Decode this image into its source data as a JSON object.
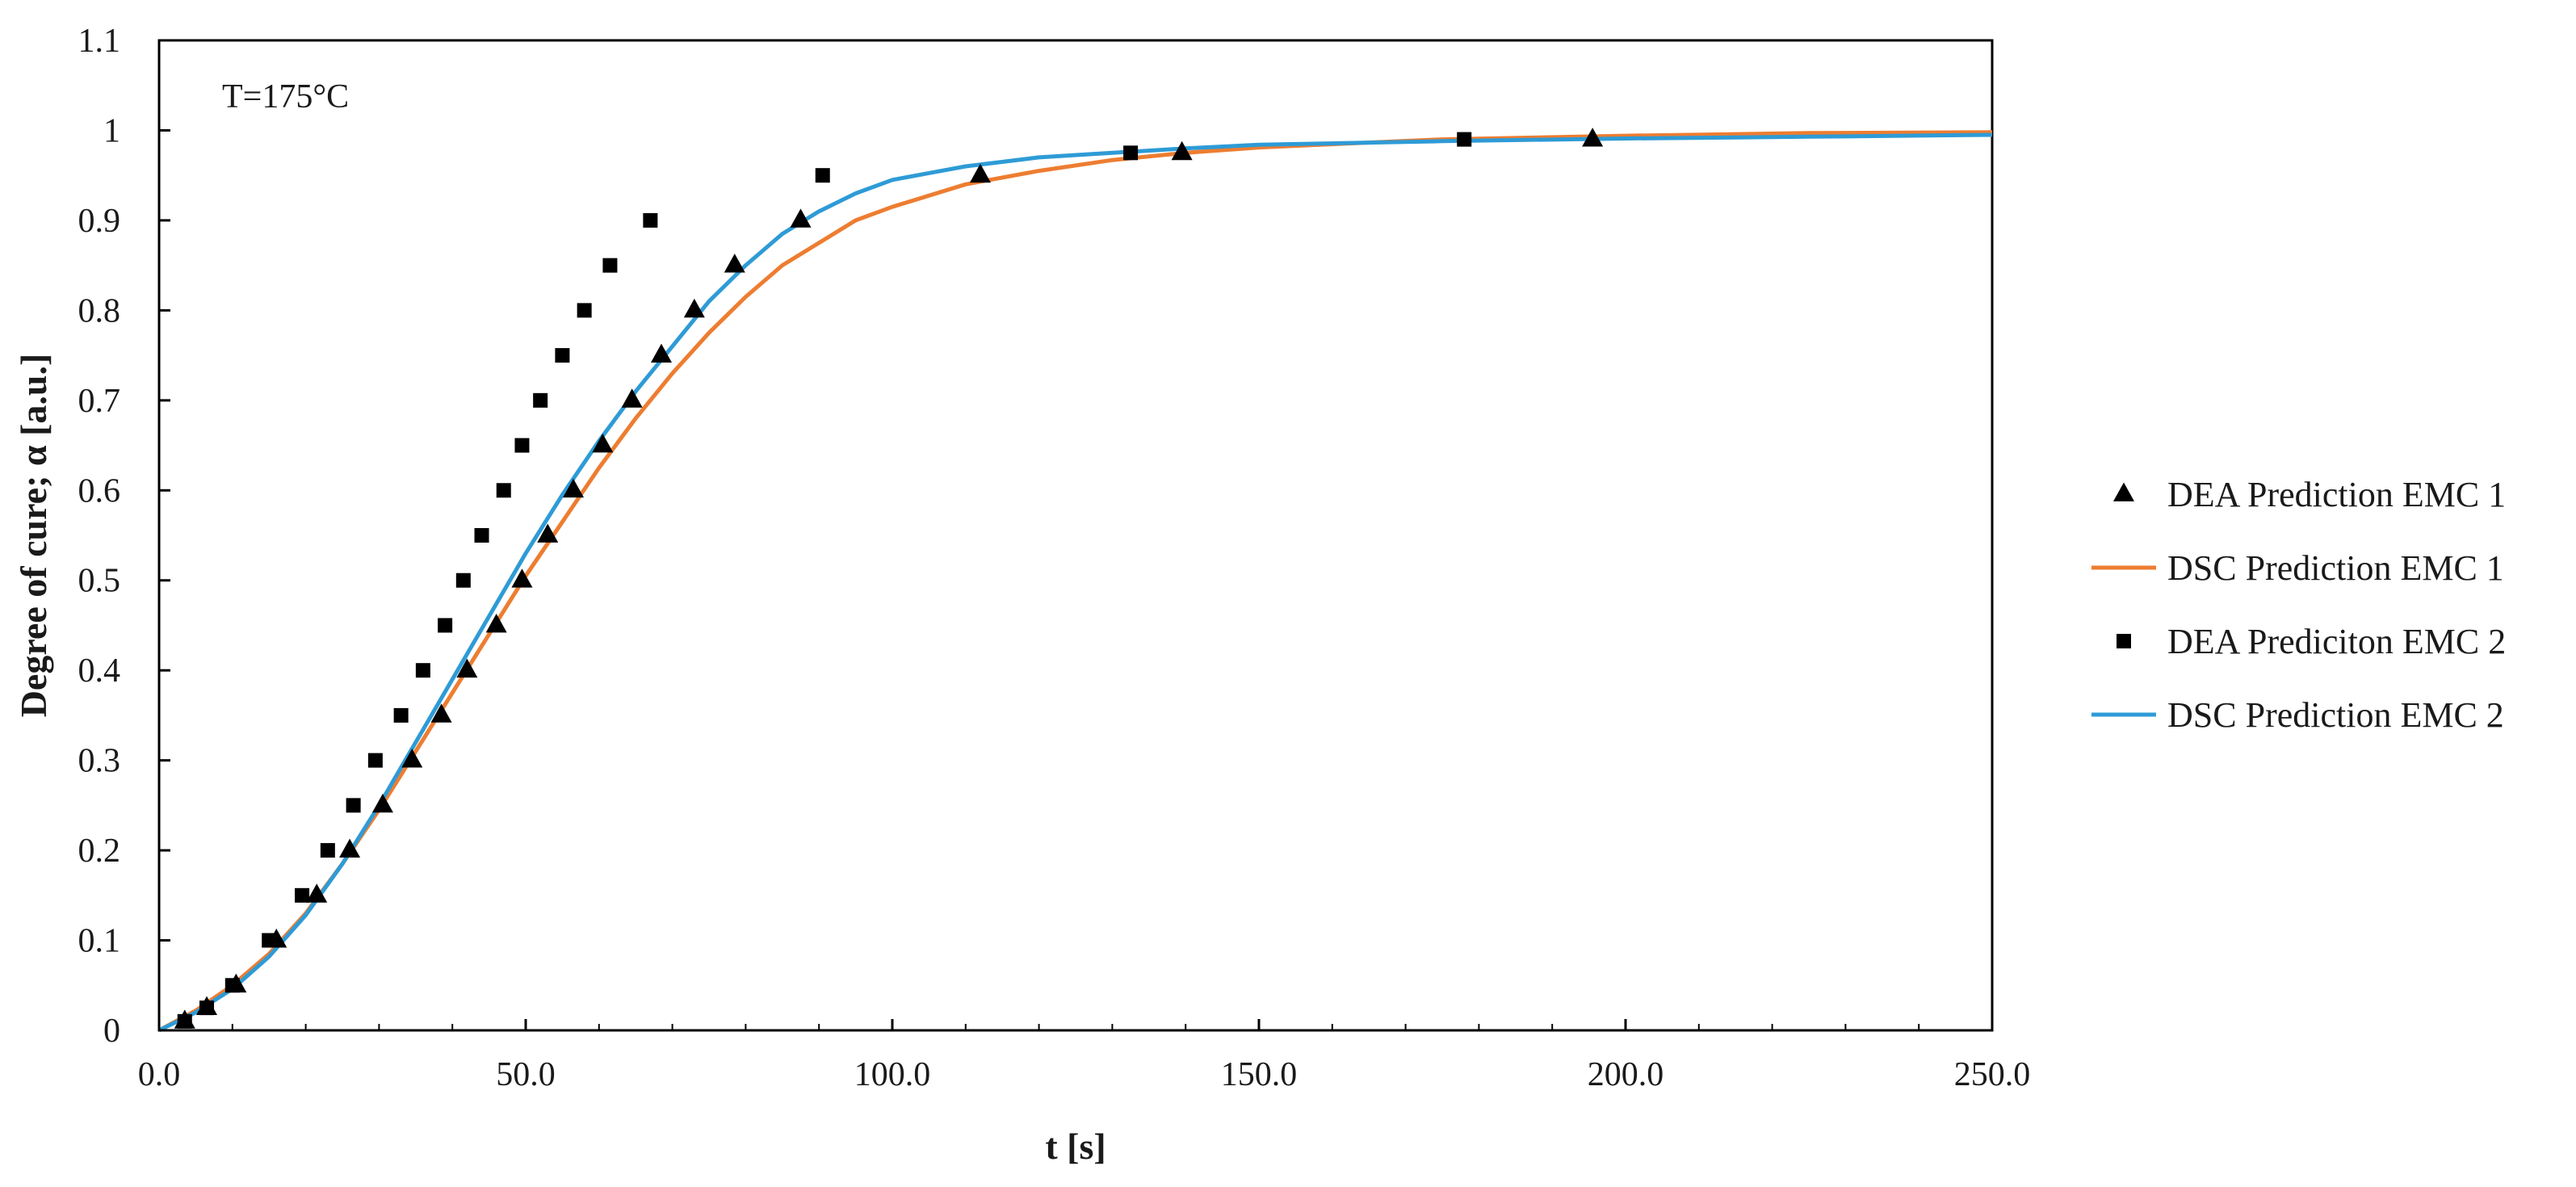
{
  "chart_data": {
    "type": "scatter",
    "title": "",
    "xlabel": "t [s]",
    "ylabel": "Degree of cure; α [a.u.]",
    "annotation": "T=175°C",
    "xlim": [
      0,
      250
    ],
    "ylim": [
      0,
      1.1
    ],
    "x_ticks": [
      0,
      50,
      100,
      150,
      200,
      250
    ],
    "x_tick_labels": [
      "0.0",
      "50.0",
      "100.0",
      "150.0",
      "200.0",
      "250.0"
    ],
    "y_ticks": [
      0,
      0.1,
      0.2,
      0.3,
      0.4,
      0.5,
      0.6,
      0.7,
      0.8,
      0.9,
      1,
      1.1
    ],
    "y_tick_labels": [
      "0",
      "0.1",
      "0.2",
      "0.3",
      "0.4",
      "0.5",
      "0.6",
      "0.7",
      "0.8",
      "0.9",
      "1",
      "1.1"
    ],
    "grid": false,
    "legend_position": "right",
    "series": [
      {
        "name": "DEA Prediction EMC 1",
        "kind": "markers",
        "marker": "triangle",
        "color": "#000000",
        "x": [
          3.5,
          6.5,
          10.5,
          16.0,
          21.5,
          26.0,
          30.5,
          34.5,
          38.5,
          42.0,
          46.0,
          49.5,
          53.0,
          56.5,
          60.5,
          64.5,
          68.5,
          73.0,
          78.5,
          87.5,
          112.0,
          139.5,
          195.5
        ],
        "y": [
          0.01,
          0.025,
          0.05,
          0.1,
          0.15,
          0.2,
          0.25,
          0.3,
          0.35,
          0.4,
          0.45,
          0.5,
          0.55,
          0.6,
          0.65,
          0.7,
          0.75,
          0.8,
          0.85,
          0.9,
          0.95,
          0.975,
          0.99
        ]
      },
      {
        "name": "DSC Prediction EMC 1",
        "kind": "line",
        "color": "#ED7D31",
        "x": [
          0,
          5,
          10,
          15,
          20,
          25,
          30,
          35,
          40,
          45,
          50,
          55,
          60,
          65,
          70,
          75,
          80,
          85,
          90,
          95,
          100,
          110,
          120,
          130,
          140,
          150,
          175,
          200,
          225,
          250
        ],
        "y": [
          0,
          0.022,
          0.05,
          0.085,
          0.13,
          0.185,
          0.245,
          0.31,
          0.375,
          0.44,
          0.505,
          0.565,
          0.625,
          0.68,
          0.73,
          0.775,
          0.815,
          0.85,
          0.875,
          0.9,
          0.915,
          0.94,
          0.955,
          0.967,
          0.975,
          0.981,
          0.99,
          0.994,
          0.997,
          0.998
        ]
      },
      {
        "name": "DEA Prediciton EMC 2",
        "kind": "markers",
        "marker": "square",
        "color": "#000000",
        "x": [
          3.5,
          6.5,
          10.0,
          15.0,
          19.5,
          23.0,
          26.5,
          29.5,
          33.0,
          36.0,
          39.0,
          41.5,
          44.0,
          47.0,
          49.5,
          52.0,
          55.0,
          58.0,
          61.5,
          67.0,
          90.5,
          132.5,
          178.0
        ],
        "y": [
          0.01,
          0.025,
          0.05,
          0.1,
          0.15,
          0.2,
          0.25,
          0.3,
          0.35,
          0.4,
          0.45,
          0.5,
          0.55,
          0.6,
          0.65,
          0.7,
          0.75,
          0.8,
          0.85,
          0.9,
          0.95,
          0.975,
          0.99
        ]
      },
      {
        "name": "DSC Prediction EMC 2",
        "kind": "line",
        "color": "#2E9BD6",
        "x": [
          0,
          5,
          10,
          15,
          20,
          25,
          30,
          35,
          40,
          45,
          50,
          55,
          60,
          65,
          70,
          75,
          80,
          85,
          90,
          95,
          100,
          110,
          120,
          130,
          140,
          150,
          175,
          200,
          225,
          250
        ],
        "y": [
          0,
          0.02,
          0.046,
          0.082,
          0.128,
          0.185,
          0.25,
          0.32,
          0.39,
          0.46,
          0.53,
          0.595,
          0.655,
          0.71,
          0.76,
          0.81,
          0.85,
          0.885,
          0.91,
          0.93,
          0.945,
          0.96,
          0.97,
          0.975,
          0.98,
          0.984,
          0.988,
          0.991,
          0.993,
          0.995
        ]
      }
    ]
  }
}
